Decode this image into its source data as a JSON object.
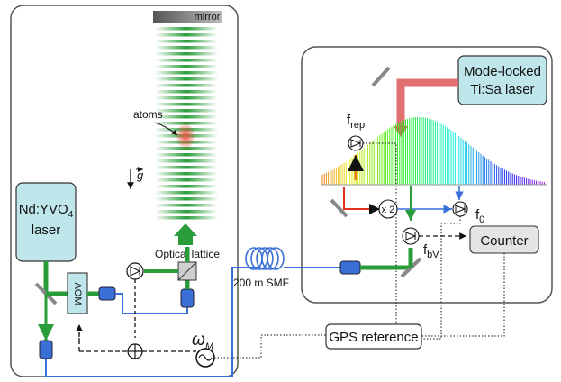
{
  "labels": {
    "mirror": "mirror",
    "atoms": "atoms",
    "g_vector": "g",
    "nd_laser_line1": "Nd:YVO",
    "nd_laser_sub": "4",
    "nd_laser_line2": "laser",
    "aom": "AOM",
    "optical_lattice": "Optical lattice",
    "omega": "ω",
    "omega_sub": "M",
    "fiber": "200 m SMF",
    "gps": "GPS reference",
    "ti_laser_line1": "Mode-locked",
    "ti_laser_line2": "Ti:Sa laser",
    "frep": "f",
    "frep_sub": "rep",
    "f0": "f",
    "f0_sub": "0",
    "fbv": "f",
    "fbv_sub": "bV",
    "x2": "x 2",
    "counter": "Counter"
  },
  "colors": {
    "lattice_green": "#2a9d3a",
    "laser_box_fill": "#bfe6ea",
    "fiber_blue": "#3a6fd8",
    "atoms_red": "#e85a4a",
    "frep_orange": "#f07a1a",
    "frep_red": "#e03020"
  }
}
